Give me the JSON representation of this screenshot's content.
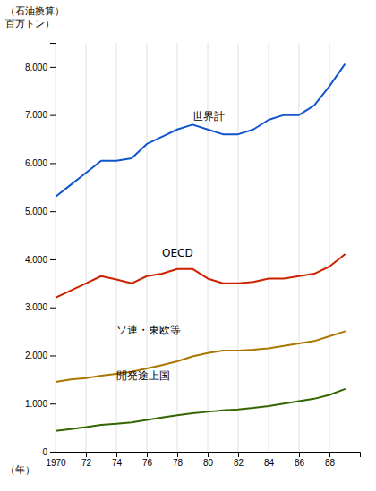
{
  "chart_data": {
    "type": "line",
    "ylabel": [
      "（石油換算）",
      "百万トン）"
    ],
    "xlabel": "（年）",
    "x": [
      1970,
      1971,
      1972,
      1973,
      1974,
      1975,
      1976,
      1977,
      1978,
      1979,
      1980,
      1981,
      1982,
      1983,
      1984,
      1985,
      1986,
      1987,
      1988,
      1989
    ],
    "series": [
      {
        "color": "#1155cc",
        "values": [
          5300,
          5550,
          5800,
          6050,
          6050,
          6100,
          6400,
          6550,
          6700,
          6800,
          6700,
          6600,
          6600,
          6700,
          6900,
          7000,
          7000,
          7200,
          7600,
          8050
        ]
      },
      {
        "color": "#cc2200",
        "values": [
          3200,
          3350,
          3500,
          3650,
          3580,
          3500,
          3650,
          3700,
          3800,
          3800,
          3600,
          3500,
          3500,
          3530,
          3600,
          3600,
          3650,
          3700,
          3850,
          4100
        ]
      },
      {
        "color": "#aa7700",
        "values": [
          1450,
          1500,
          1530,
          1580,
          1620,
          1660,
          1730,
          1800,
          1880,
          1980,
          2050,
          2100,
          2100,
          2120,
          2150,
          2200,
          2250,
          2300,
          2400,
          2500
        ]
      },
      {
        "color": "#336600",
        "values": [
          430,
          470,
          510,
          560,
          580,
          610,
          660,
          710,
          760,
          800,
          830,
          860,
          880,
          910,
          950,
          1000,
          1050,
          1100,
          1180,
          1300
        ]
      }
    ],
    "annotations": [
      {
        "text": "世界計",
        "x": 1979,
        "y": 6900
      },
      {
        "text": "OECD",
        "x": 1977,
        "y": 4050
      },
      {
        "text": "ソ連・東欧等",
        "x": 1974,
        "y": 2450
      },
      {
        "text": "開発途上国",
        "x": 1974,
        "y": 1500
      }
    ],
    "xlim": [
      1970,
      1990
    ],
    "xticks": [
      1970,
      {
        "value": 1972,
        "label": "72"
      },
      {
        "value": 1974,
        "label": "74"
      },
      {
        "value": 1976,
        "label": "76"
      },
      {
        "value": 1978,
        "label": "78"
      },
      {
        "value": 1980,
        "label": "80"
      },
      {
        "value": 1982,
        "label": "82"
      },
      {
        "value": 1984,
        "label": "84"
      },
      {
        "value": 1986,
        "label": "86"
      },
      {
        "value": 1988,
        "label": "88"
      }
    ],
    "ylim": [
      0,
      8500
    ],
    "yticks": [
      0,
      {
        "value": 1000,
        "label": "1.000"
      },
      {
        "value": 2000,
        "label": "2.000"
      },
      {
        "value": 3000,
        "label": "3.000"
      },
      {
        "value": 4000,
        "label": "4.000"
      },
      {
        "value": 5000,
        "label": "5.000"
      },
      {
        "value": 6000,
        "label": "6.000"
      },
      {
        "value": 7000,
        "label": "7.000"
      },
      {
        "value": 8000,
        "label": "8.000"
      }
    ],
    "grid": "x"
  }
}
